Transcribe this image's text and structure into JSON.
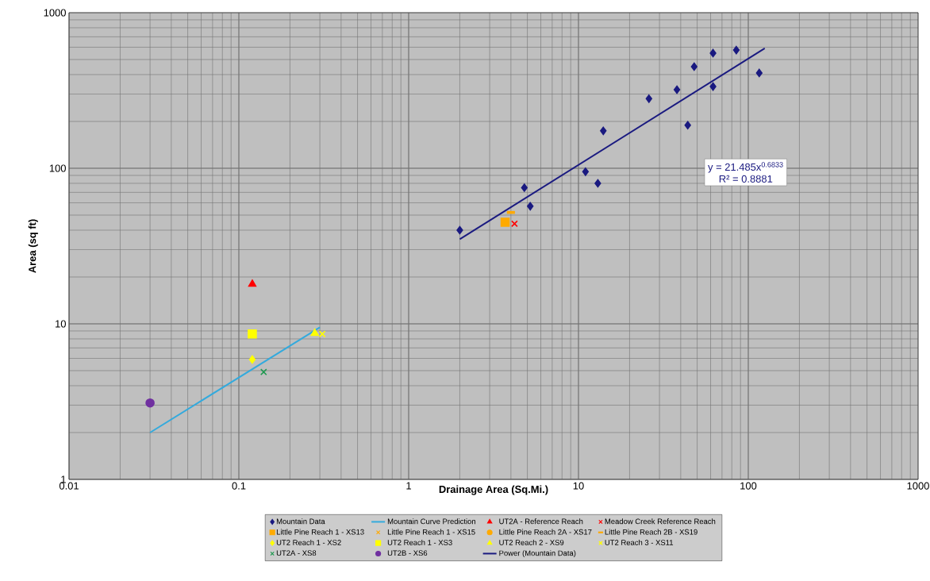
{
  "chart_data": {
    "type": "scatter",
    "xlabel": "Drainage Area (Sq.Mi.)",
    "ylabel": "Area (sq ft)",
    "log": "xy",
    "grid": true,
    "legend": "bottom",
    "xlim": [
      0.01,
      1000
    ],
    "xticks": [
      0.01,
      0.1,
      1,
      10,
      100,
      1000
    ],
    "ylim": [
      1,
      1000
    ],
    "yticks": [
      1,
      10,
      100,
      1000
    ],
    "annotations": [
      "y = 21.485x$^{0.6833}$",
      "R² = 0.8881"
    ],
    "series": [
      {
        "name": "Mountain Data",
        "color": "#1a1a80",
        "marker": "diamond",
        "x": [
          2,
          4.8,
          5.2,
          11,
          13,
          14,
          26,
          38,
          44,
          48,
          62,
          62,
          85,
          116
        ],
        "values": [
          40,
          75,
          57,
          95,
          80,
          174,
          280,
          320,
          189,
          450,
          335,
          550,
          575,
          410
        ]
      },
      {
        "name": "Mountain Curve Prediction",
        "type": "line",
        "line_style": "solid",
        "marker": "none",
        "color": "#33aadd",
        "x": [
          0.03,
          0.3
        ],
        "values": [
          2,
          9.5
        ]
      },
      {
        "name": "UT2A - Reference Reach",
        "color": "#ff0000",
        "marker": "triangle",
        "x": [
          0.12
        ],
        "values": [
          18
        ]
      },
      {
        "name": "Meadow Creek Reference Reach",
        "color": "#ff0000",
        "marker": "cross",
        "x": [
          4.2
        ],
        "values": [
          44
        ]
      },
      {
        "name": "Little Pine Reach 1 - XS13",
        "color": "#ffaa00",
        "marker": "square",
        "x": [
          3.7
        ],
        "values": [
          45
        ]
      },
      {
        "name": "Little Pine Reach 1 - XS15",
        "color": "#ffaa00",
        "marker": "cross",
        "values": [
          null
        ]
      },
      {
        "name": "Little Pine Reach 2A - XS17",
        "color": "#ffaa00",
        "marker": "circle",
        "values": [
          null
        ]
      },
      {
        "name": "Little Pine Reach 2B - XS19",
        "color": "#ffaa00",
        "x": [
          4
        ],
        "values": [
          52
        ]
      },
      {
        "name": "UT2 Reach 1 - XS2",
        "color": "#ffff00",
        "marker": "diamond",
        "x": [
          0.12
        ],
        "values": [
          5.9
        ]
      },
      {
        "name": "UT2 Reach 1 - XS3",
        "color": "#ffff00",
        "marker": "square",
        "x": [
          0.12
        ],
        "values": [
          8.6
        ]
      },
      {
        "name": "UT2 Reach 2 - XS9",
        "color": "#ffff00",
        "marker": "triangle",
        "x": [
          0.28
        ],
        "values": [
          8.7
        ]
      },
      {
        "name": "UT2 Reach 3 - XS11",
        "color": "#ffff00",
        "marker": "cross",
        "x": [
          0.31
        ],
        "values": [
          8.6
        ]
      },
      {
        "name": "UT2A - XS8",
        "color": "#1f9950",
        "marker": "cross",
        "x": [
          0.14
        ],
        "values": [
          4.9
        ]
      },
      {
        "name": "UT2B - XS6",
        "color": "#7030a0",
        "marker": "circle",
        "x": [
          0.03
        ],
        "values": [
          3.1
        ]
      },
      {
        "name": "Power (Mountain Data)",
        "type": "line",
        "line_style": "solid",
        "marker": "none",
        "color": "#1a1a80",
        "x": [
          2,
          125
        ],
        "values": [
          35,
          590
        ]
      }
    ]
  }
}
